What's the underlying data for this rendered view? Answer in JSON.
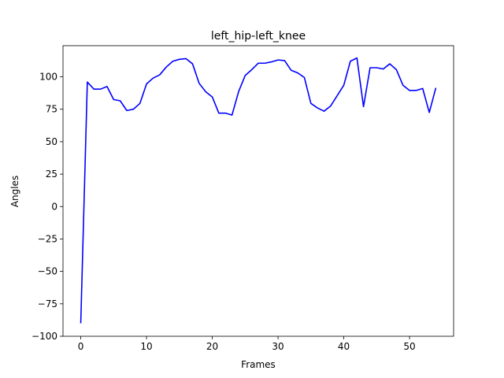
{
  "chart_data": {
    "type": "line",
    "title": "left_hip-left_knee",
    "xlabel": "Frames",
    "ylabel": "Angles",
    "xlim": [
      -2.7,
      56.7
    ],
    "ylim": [
      -100,
      124
    ],
    "xticks": [
      0,
      10,
      20,
      30,
      40,
      50
    ],
    "yticks": [
      -100,
      -75,
      -50,
      -25,
      0,
      25,
      50,
      75,
      100
    ],
    "ytick_labels": [
      "−100",
      "−75",
      "−50",
      "−25",
      "0",
      "25",
      "50",
      "75",
      "100"
    ],
    "grid": false,
    "series": [
      {
        "name": "left_hip-left_knee",
        "color": "#0000ff",
        "x": [
          0,
          1,
          2,
          3,
          4,
          5,
          6,
          7,
          8,
          9,
          10,
          11,
          12,
          13,
          14,
          15,
          16,
          17,
          18,
          19,
          20,
          21,
          22,
          23,
          24,
          25,
          26,
          27,
          28,
          29,
          30,
          31,
          32,
          33,
          34,
          35,
          36,
          37,
          38,
          39,
          40,
          41,
          42,
          43,
          44,
          45,
          46,
          47,
          48,
          49,
          50,
          51,
          52,
          53,
          54
        ],
        "values": [
          -90,
          96,
          90.5,
          90.5,
          92.5,
          82.5,
          81.5,
          74,
          75,
          79.5,
          94.5,
          99,
          101.5,
          107.5,
          112,
          113.5,
          114,
          110,
          95,
          88.5,
          84.5,
          72,
          72,
          70.5,
          88.5,
          101,
          105.5,
          110.5,
          110.5,
          111.5,
          113,
          112.5,
          105,
          103,
          99.5,
          79.5,
          76,
          73.5,
          77.5,
          85.5,
          93.5,
          112,
          114.5,
          77,
          107,
          107,
          106,
          110,
          105.5,
          93.5,
          89.5,
          89.5,
          91,
          72.5,
          91.5
        ]
      }
    ]
  }
}
